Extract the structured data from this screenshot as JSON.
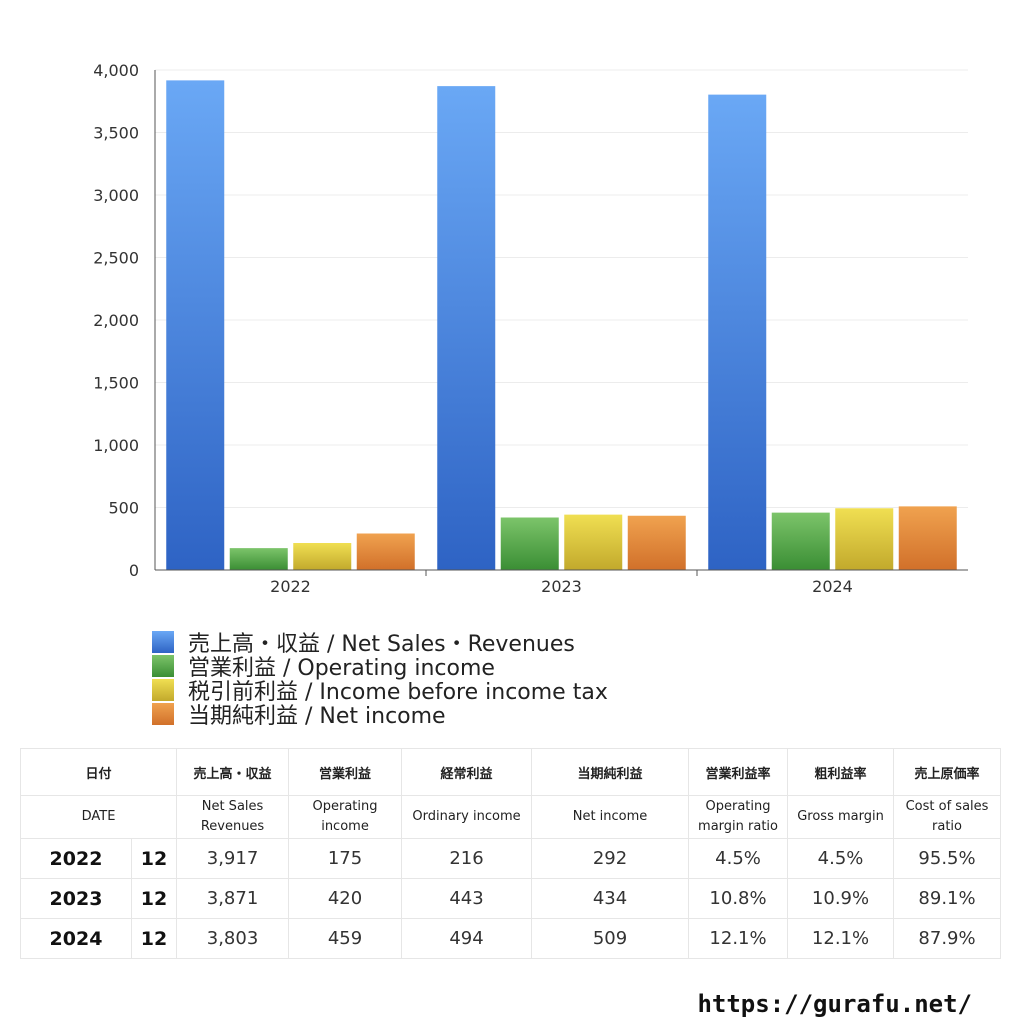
{
  "chart_data": {
    "type": "bar",
    "categories": [
      "2022",
      "2023",
      "2024"
    ],
    "series": [
      {
        "name": "売上高・収益 / Net Sales・Revenues",
        "values": [
          3917,
          3871,
          3803
        ],
        "color_top": "#6aa8f5",
        "color_bottom": "#2e63c4"
      },
      {
        "name": "営業利益 / Operating income",
        "values": [
          175,
          420,
          459
        ],
        "color_top": "#7cc46a",
        "color_bottom": "#3a8e34"
      },
      {
        "name": "税引前利益 / Income before income tax",
        "values": [
          216,
          443,
          494
        ],
        "color_top": "#f0df52",
        "color_bottom": "#c2a92c"
      },
      {
        "name": "当期純利益 / Net income",
        "values": [
          292,
          434,
          509
        ],
        "color_top": "#f0a24f",
        "color_bottom": "#d1702a"
      }
    ],
    "ylim": [
      0,
      4000
    ],
    "yticks": [
      0,
      500,
      1000,
      1500,
      2000,
      2500,
      3000,
      3500,
      4000
    ],
    "ytick_labels": [
      "0",
      "500",
      "1,000",
      "1,500",
      "2,000",
      "2,500",
      "3,000",
      "3,500",
      "4,000"
    ],
    "grid": true,
    "legend_position": "bottom-left"
  },
  "table": {
    "headers_jp": [
      "日付",
      "売上高・収益",
      "営業利益",
      "経常利益",
      "当期純利益",
      "営業利益率",
      "粗利益率",
      "売上原価率"
    ],
    "headers_en": [
      "DATE",
      "Net Sales\nRevenues",
      "Operating\nincome",
      "Ordinary income",
      "Net income",
      "Operating\nmargin ratio",
      "Gross margin",
      "Cost of sales\nratio"
    ],
    "rows": [
      {
        "year": "2022",
        "month": "12",
        "values": [
          "3,917",
          "175",
          "216",
          "292",
          "4.5%",
          "4.5%",
          "95.5%"
        ]
      },
      {
        "year": "2023",
        "month": "12",
        "values": [
          "3,871",
          "420",
          "443",
          "434",
          "10.8%",
          "10.9%",
          "89.1%"
        ]
      },
      {
        "year": "2024",
        "month": "12",
        "values": [
          "3,803",
          "459",
          "494",
          "509",
          "12.1%",
          "12.1%",
          "87.9%"
        ]
      }
    ]
  },
  "footer": {
    "url": "https://gurafu.net/"
  }
}
